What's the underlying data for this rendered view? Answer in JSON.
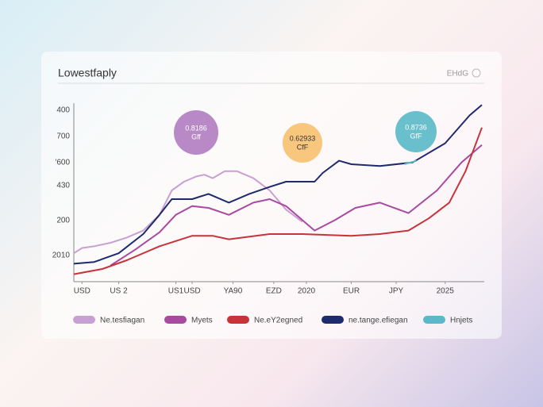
{
  "chart_data": {
    "type": "line",
    "title": "Lowestfaply",
    "badge": "EHdG",
    "y_labels": [
      "400",
      "700",
      "'600",
      "430",
      "200",
      "2010"
    ],
    "xlim": [
      0,
      100
    ],
    "ylim": [
      0,
      100
    ],
    "xticks": [
      {
        "value": 2,
        "label": "USD"
      },
      {
        "value": 11,
        "label": "US 2"
      },
      {
        "value": 25,
        "label": "US1"
      },
      {
        "value": 29,
        "label": "USD"
      },
      {
        "value": 39,
        "label": "YA90"
      },
      {
        "value": 49,
        "label": "EZD"
      },
      {
        "value": 57,
        "label": "2020"
      },
      {
        "value": 68,
        "label": "EUR"
      },
      {
        "value": 79,
        "label": "JPY"
      },
      {
        "value": 91,
        "label": "2025"
      }
    ],
    "series": [
      {
        "name": "Ne.tesfiagan",
        "color": "#c9a0d4",
        "x": [
          0,
          2,
          5,
          9,
          13,
          17,
          21,
          24,
          27,
          30,
          32,
          34,
          37,
          40,
          44,
          48,
          52,
          56
        ],
        "values": [
          14,
          17,
          18,
          20,
          23,
          27,
          36,
          50,
          55,
          58,
          59,
          57,
          61,
          61,
          57,
          50,
          39,
          32
        ]
      },
      {
        "name": "Myets",
        "color": "#a84aa0",
        "x": [
          9,
          15,
          21,
          25,
          29,
          33,
          38,
          44,
          48,
          52,
          59,
          64,
          69,
          75,
          82,
          89,
          95,
          100
        ],
        "values": [
          7,
          16,
          26,
          36,
          41,
          40,
          36,
          43,
          45,
          41,
          27,
          33,
          40,
          43,
          37,
          50,
          66,
          76
        ]
      },
      {
        "name": "Ne.eY2egned",
        "color": "#c8333a",
        "x": [
          0,
          7,
          13,
          21,
          29,
          34,
          38,
          48,
          56,
          68,
          75,
          82,
          87,
          92,
          96,
          100
        ],
        "values": [
          2,
          5,
          10,
          18,
          24,
          24,
          22,
          25,
          25,
          24,
          25,
          27,
          34,
          43,
          61,
          86
        ]
      },
      {
        "name": "ne.tange.efiegan",
        "color": "#1e2a6e",
        "x": [
          0,
          5,
          11,
          17,
          21,
          24,
          29,
          33,
          38,
          43,
          48,
          52,
          59,
          61,
          65,
          68,
          75,
          83,
          91,
          97,
          100
        ],
        "values": [
          8,
          9,
          14,
          25,
          36,
          45,
          45,
          48,
          43,
          48,
          52,
          55,
          55,
          60,
          67,
          65,
          64,
          66,
          77,
          93,
          99
        ]
      },
      {
        "name": "Hnjets",
        "color": "#5ab8c8",
        "x": [
          81,
          84
        ],
        "values": [
          65,
          67
        ]
      }
    ],
    "annotations": [
      {
        "lines": [
          "0.8186",
          "Gff"
        ],
        "color": "#b07cc0"
      },
      {
        "lines": [
          "0.62933",
          "CfF"
        ],
        "color": "#f8c070"
      },
      {
        "lines": [
          "0.8736",
          "GfF"
        ],
        "color": "#5ab8c8"
      }
    ]
  }
}
